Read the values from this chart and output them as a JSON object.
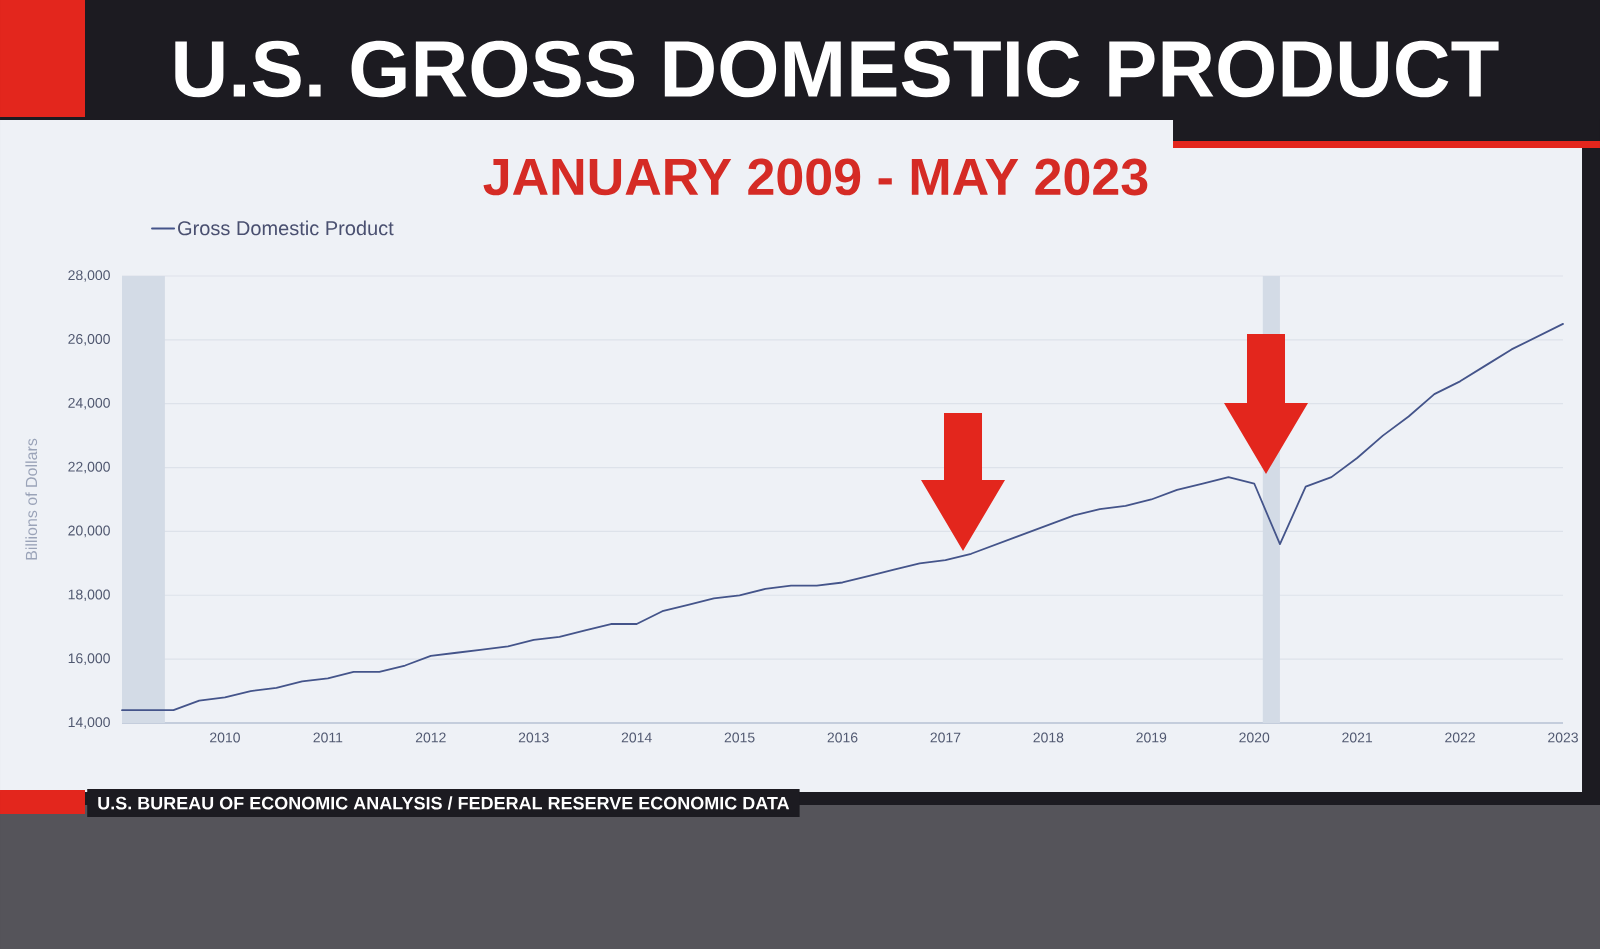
{
  "chart_data": {
    "type": "line",
    "title": "U.S. GROSS DOMESTIC PRODUCT",
    "subtitle": "JANUARY 2009 - MAY 2023",
    "ylabel": "Billions of Dollars",
    "x": [
      "2009-01",
      "2009-04",
      "2009-07",
      "2009-10",
      "2010-01",
      "2010-04",
      "2010-07",
      "2010-10",
      "2011-01",
      "2011-04",
      "2011-07",
      "2011-10",
      "2012-01",
      "2012-04",
      "2012-07",
      "2012-10",
      "2013-01",
      "2013-04",
      "2013-07",
      "2013-10",
      "2014-01",
      "2014-04",
      "2014-07",
      "2014-10",
      "2015-01",
      "2015-04",
      "2015-07",
      "2015-10",
      "2016-01",
      "2016-04",
      "2016-07",
      "2016-10",
      "2017-01",
      "2017-04",
      "2017-07",
      "2017-10",
      "2018-01",
      "2018-04",
      "2018-07",
      "2018-10",
      "2019-01",
      "2019-04",
      "2019-07",
      "2019-10",
      "2020-01",
      "2020-04",
      "2020-07",
      "2020-10",
      "2021-01",
      "2021-04",
      "2021-07",
      "2021-10",
      "2022-01",
      "2022-04",
      "2022-07",
      "2022-10",
      "2023-01"
    ],
    "series": [
      {
        "name": "Gross Domestic Product",
        "color": "#44548a",
        "values": [
          14400,
          14400,
          14400,
          14700,
          14800,
          15000,
          15100,
          15300,
          15400,
          15600,
          15600,
          15800,
          16100,
          16200,
          16300,
          16400,
          16600,
          16700,
          16900,
          17100,
          17100,
          17500,
          17700,
          17900,
          18000,
          18200,
          18300,
          18300,
          18400,
          18600,
          18800,
          19000,
          19100,
          19300,
          19600,
          19900,
          20200,
          20500,
          20700,
          20800,
          21000,
          21300,
          21500,
          21700,
          21500,
          19600,
          21400,
          21700,
          22300,
          23000,
          23600,
          24300,
          24700,
          25200,
          25700,
          26100,
          26500
        ]
      }
    ],
    "xlim": [
      "2009-01",
      "2023-01"
    ],
    "xticks": [
      "2010",
      "2011",
      "2012",
      "2013",
      "2014",
      "2015",
      "2016",
      "2017",
      "2018",
      "2019",
      "2020",
      "2021",
      "2022",
      "2023"
    ],
    "ylim": [
      14000,
      28000
    ],
    "yticks": [
      {
        "value": 14000,
        "label": "14,000"
      },
      {
        "value": 16000,
        "label": "16,000"
      },
      {
        "value": 18000,
        "label": "18,000"
      },
      {
        "value": 20000,
        "label": "20,000"
      },
      {
        "value": 22000,
        "label": "22,000"
      },
      {
        "value": 24000,
        "label": "24,000"
      },
      {
        "value": 26000,
        "label": "26,000"
      },
      {
        "value": 28000,
        "label": "28,000"
      }
    ],
    "grid": "y",
    "legend": "top left",
    "bands": [
      {
        "axis": "x",
        "from": "2009-01",
        "to": "2009-06",
        "color": "#d3dbe6"
      },
      {
        "axis": "x",
        "from": "2020-02",
        "to": "2020-04",
        "color": "#d3dbe6"
      }
    ],
    "annotations": [
      "U.S. BUREAU OF ECONOMIC ANALYSIS / FEDERAL RESERVE ECONOMIC DATA"
    ]
  }
}
